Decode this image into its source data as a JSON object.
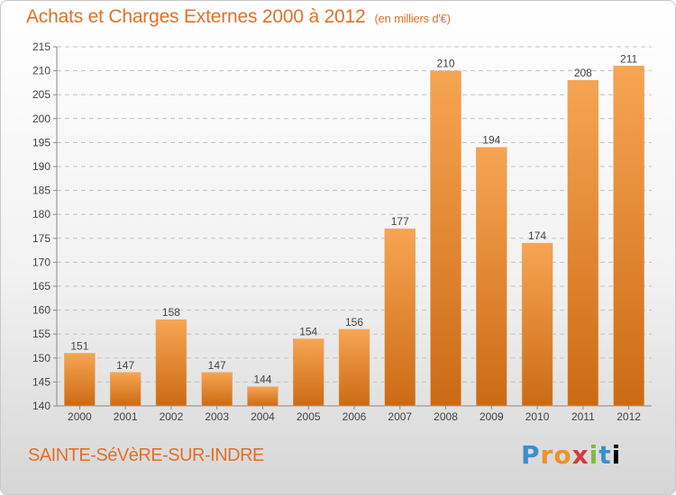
{
  "header": {
    "title": "Achats et Charges Externes 2000 à 2012",
    "unit": "(en milliers d'€)"
  },
  "footer": {
    "commune": "SAINTE-SéVèRE-SUR-INDRE",
    "brand": "Proxiti"
  },
  "colors": {
    "accent": "#e0702a",
    "bar_top": "#f7a553",
    "bar_bottom": "#cc6a14"
  },
  "chart_data": {
    "type": "bar",
    "categories": [
      "2000",
      "2001",
      "2002",
      "2003",
      "2004",
      "2005",
      "2006",
      "2007",
      "2008",
      "2009",
      "2010",
      "2011",
      "2012"
    ],
    "values": [
      151,
      147,
      158,
      147,
      144,
      154,
      156,
      177,
      210,
      194,
      174,
      208,
      211
    ],
    "ylim": [
      140,
      215
    ],
    "yticks": [
      140,
      145,
      150,
      155,
      160,
      165,
      170,
      175,
      180,
      185,
      190,
      195,
      200,
      205,
      210,
      215
    ],
    "grid": true,
    "data_labels": true
  }
}
